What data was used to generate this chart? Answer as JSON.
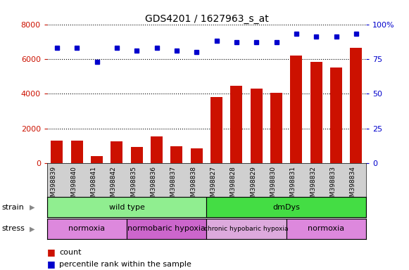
{
  "title": "GDS4201 / 1627963_s_at",
  "samples": [
    "GSM398839",
    "GSM398840",
    "GSM398841",
    "GSM398842",
    "GSM398835",
    "GSM398836",
    "GSM398837",
    "GSM398838",
    "GSM398827",
    "GSM398828",
    "GSM398829",
    "GSM398830",
    "GSM398831",
    "GSM398832",
    "GSM398833",
    "GSM398834"
  ],
  "counts": [
    1300,
    1300,
    400,
    1250,
    950,
    1550,
    1000,
    850,
    3800,
    4450,
    4300,
    4050,
    6200,
    5850,
    5500,
    6650
  ],
  "percentile_ranks": [
    83,
    83,
    73,
    83,
    81,
    83,
    81,
    80,
    88,
    87,
    87,
    87,
    93,
    91,
    91,
    93
  ],
  "ylim_left": [
    0,
    8000
  ],
  "ylim_right": [
    0,
    100
  ],
  "yticks_left": [
    0,
    2000,
    4000,
    6000,
    8000
  ],
  "yticks_right": [
    0,
    25,
    50,
    75,
    100
  ],
  "strain_groups": [
    {
      "label": "wild type",
      "start": 0,
      "end": 8,
      "color": "#90EE90"
    },
    {
      "label": "dmDys",
      "start": 8,
      "end": 16,
      "color": "#44DD44"
    }
  ],
  "stress_groups": [
    {
      "label": "normoxia",
      "start": 0,
      "end": 4,
      "color": "#DD88DD"
    },
    {
      "label": "normobaric hypoxia",
      "start": 4,
      "end": 8,
      "color": "#CC66CC"
    },
    {
      "label": "chronic hypobaric hypoxia",
      "start": 8,
      "end": 12,
      "color": "#DDAADD"
    },
    {
      "label": "normoxia",
      "start": 12,
      "end": 16,
      "color": "#DD88DD"
    }
  ],
  "bar_color": "#CC1100",
  "dot_color": "#0000CC",
  "left_axis_color": "#CC1100",
  "right_axis_color": "#0000CC",
  "xtick_bg": "#D0D0D0",
  "legend_items": [
    "count",
    "percentile rank within the sample"
  ],
  "title_fontsize": 10
}
